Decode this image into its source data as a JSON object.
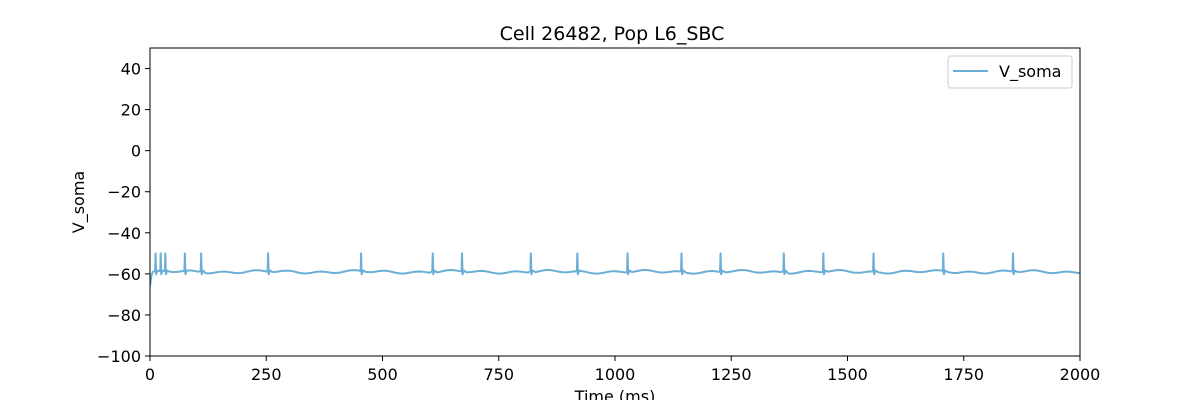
{
  "chart_data": {
    "type": "line",
    "title": "Cell 26482, Pop L6_SBC",
    "xlabel": "Time (ms)",
    "ylabel": "V_soma",
    "xlim": [
      0,
      2000
    ],
    "ylim": [
      -100,
      50
    ],
    "xticks": [
      0,
      250,
      500,
      750,
      1000,
      1250,
      1500,
      1750,
      2000
    ],
    "yticks": [
      -100,
      -80,
      -60,
      -40,
      -20,
      0,
      20,
      40
    ],
    "grid": false,
    "legend_position": "top-right",
    "resting_potential": -59,
    "spike_peak": -50,
    "spike_times": [
      12,
      23,
      33,
      75,
      110,
      254,
      454,
      608,
      671,
      819,
      919,
      1027,
      1143,
      1227,
      1363,
      1448,
      1556,
      1706,
      1856
    ],
    "series": [
      {
        "name": "V_soma",
        "color": "#6baed6"
      }
    ]
  }
}
